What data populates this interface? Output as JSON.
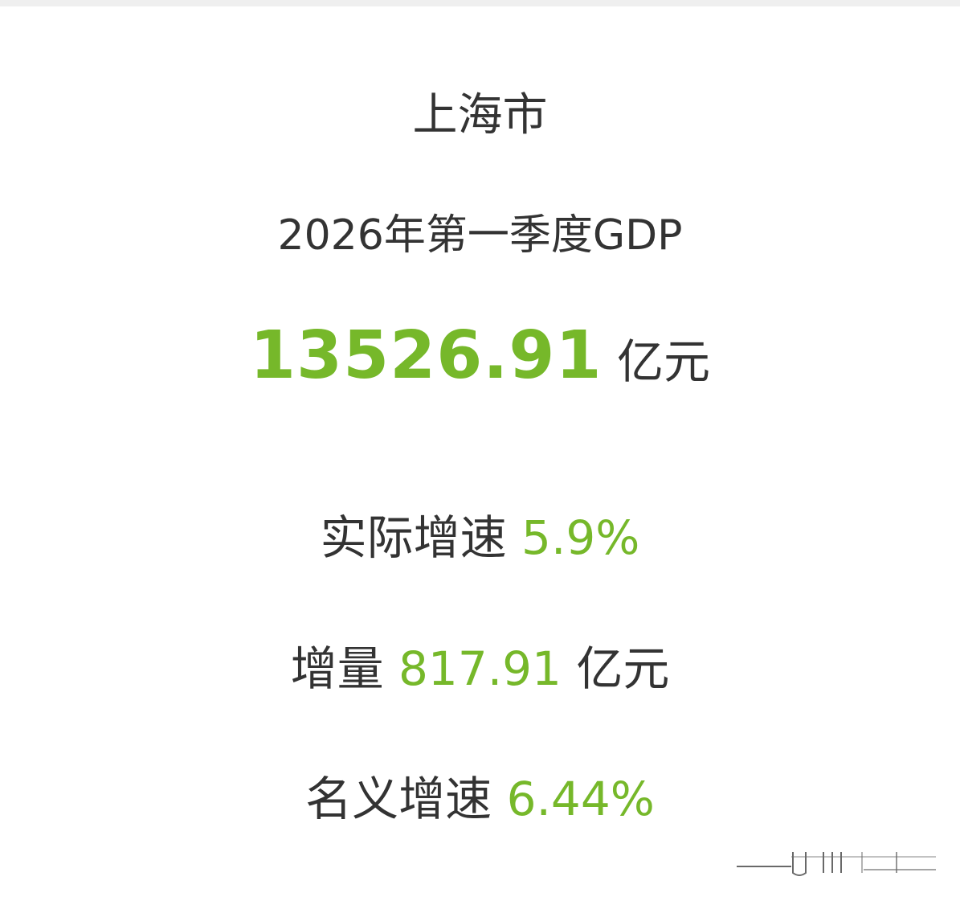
{
  "header": {
    "region": "上海市",
    "subtitle": "2026年第一季度GDP"
  },
  "gdp": {
    "value": "13526.91",
    "unit": "亿元"
  },
  "stats": [
    {
      "label": "实际增速",
      "value": "5.9%",
      "unit": ""
    },
    {
      "label": "增量",
      "value": "817.91",
      "unit": "亿元"
    },
    {
      "label": "名义增速",
      "value": "6.44%",
      "unit": ""
    }
  ],
  "colors": {
    "accent": "#76b82a",
    "text": "#333333"
  }
}
